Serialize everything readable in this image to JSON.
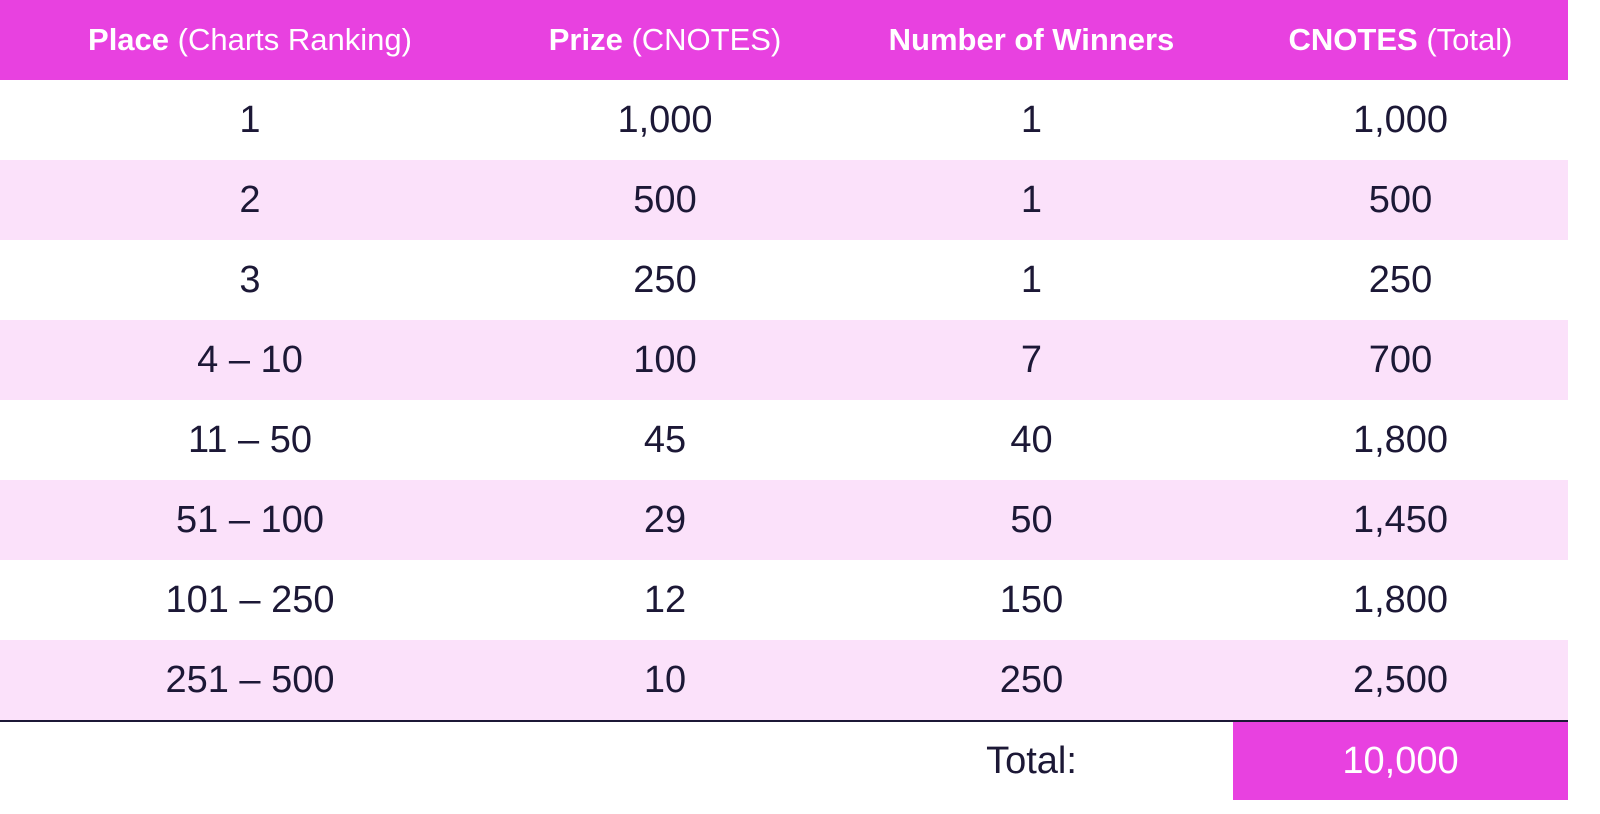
{
  "header": [
    {
      "bold": "Place",
      "rest": "(Charts Ranking)"
    },
    {
      "bold": "Prize",
      "rest": "(CNOTES)"
    },
    {
      "bold": "Number of Winners",
      "rest": ""
    },
    {
      "bold": "CNOTES",
      "rest": "(Total)"
    }
  ],
  "rows": [
    [
      "1",
      "1,000",
      "1",
      "1,000"
    ],
    [
      "2",
      "500",
      "1",
      "500"
    ],
    [
      "3",
      "250",
      "1",
      "250"
    ],
    [
      "4 – 10",
      "100",
      "7",
      "700"
    ],
    [
      "11 – 50",
      "45",
      "40",
      "1,800"
    ],
    [
      "51 – 100",
      "29",
      "50",
      "1,450"
    ],
    [
      "101 – 250",
      "12",
      "150",
      "1,800"
    ],
    [
      "251 – 500",
      "10",
      "250",
      "2,500"
    ]
  ],
  "total": {
    "label": "Total:",
    "value": "10,000"
  },
  "colors": {
    "accent": "#e841e0",
    "stripe": "#fbe1fa",
    "text": "#1c1836"
  }
}
